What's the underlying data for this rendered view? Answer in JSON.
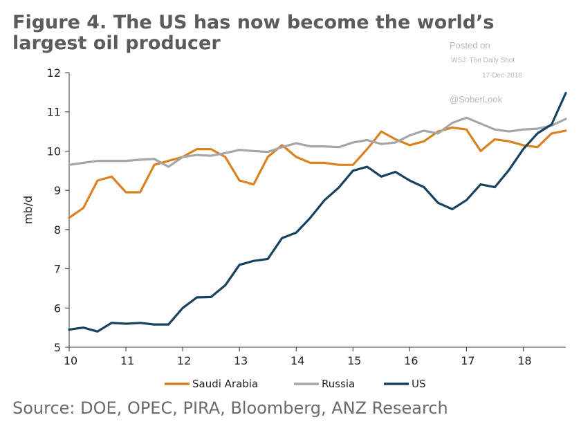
{
  "title": "Figure 4. The US has now become the world’s largest oil producer",
  "watermark": {
    "line1": "Posted on",
    "line2": "WSJ: The Daily Shot",
    "line3": "17-Dec-2018",
    "line4": "@SoberLook"
  },
  "source": "Source: DOE, OPEC, PIRA, Bloomberg, ANZ Research",
  "chart_data": {
    "type": "line",
    "title": "The US has now become the world’s largest oil producer",
    "ylabel": "mb/d",
    "xlabel": "",
    "xlim": [
      10,
      18.75
    ],
    "ylim": [
      5,
      12
    ],
    "x_ticks": [
      "10",
      "11",
      "12",
      "13",
      "14",
      "15",
      "16",
      "17",
      "18"
    ],
    "y_ticks": [
      "5",
      "6",
      "7",
      "8",
      "9",
      "10",
      "11",
      "12"
    ],
    "legend_position": "bottom",
    "x": [
      10.0,
      10.25,
      10.5,
      10.75,
      11.0,
      11.25,
      11.5,
      11.75,
      12.0,
      12.25,
      12.5,
      12.75,
      13.0,
      13.25,
      13.5,
      13.75,
      14.0,
      14.25,
      14.5,
      14.75,
      15.0,
      15.25,
      15.5,
      15.75,
      16.0,
      16.25,
      16.5,
      16.75,
      17.0,
      17.25,
      17.5,
      17.75,
      18.0,
      18.25,
      18.5,
      18.75
    ],
    "series": [
      {
        "name": "Saudi Arabia",
        "color": "#d9821f",
        "values": [
          8.3,
          8.55,
          9.25,
          9.35,
          8.95,
          8.95,
          9.65,
          9.75,
          9.85,
          10.05,
          10.05,
          9.85,
          9.25,
          9.15,
          9.85,
          10.15,
          9.85,
          9.7,
          9.7,
          9.65,
          9.65,
          10.05,
          10.5,
          10.3,
          10.15,
          10.25,
          10.5,
          10.6,
          10.55,
          10.0,
          10.3,
          10.25,
          10.15,
          10.1,
          10.45,
          10.52
        ]
      },
      {
        "name": "Russia",
        "color": "#a6a6a6",
        "values": [
          9.65,
          9.7,
          9.75,
          9.75,
          9.75,
          9.78,
          9.8,
          9.6,
          9.85,
          9.9,
          9.88,
          9.95,
          10.03,
          10.0,
          9.98,
          10.1,
          10.2,
          10.12,
          10.12,
          10.1,
          10.22,
          10.28,
          10.18,
          10.22,
          10.4,
          10.52,
          10.45,
          10.72,
          10.85,
          10.7,
          10.55,
          10.5,
          10.55,
          10.57,
          10.65,
          10.82
        ]
      },
      {
        "name": "US",
        "color": "#17425e",
        "values": [
          5.45,
          5.5,
          5.4,
          5.62,
          5.6,
          5.62,
          5.58,
          5.58,
          6.0,
          6.27,
          6.28,
          6.58,
          7.1,
          7.2,
          7.25,
          7.78,
          7.92,
          8.3,
          8.75,
          9.07,
          9.5,
          9.6,
          9.35,
          9.47,
          9.25,
          9.08,
          8.68,
          8.52,
          8.75,
          9.15,
          9.08,
          9.52,
          10.05,
          10.45,
          10.68,
          11.48
        ]
      }
    ]
  }
}
